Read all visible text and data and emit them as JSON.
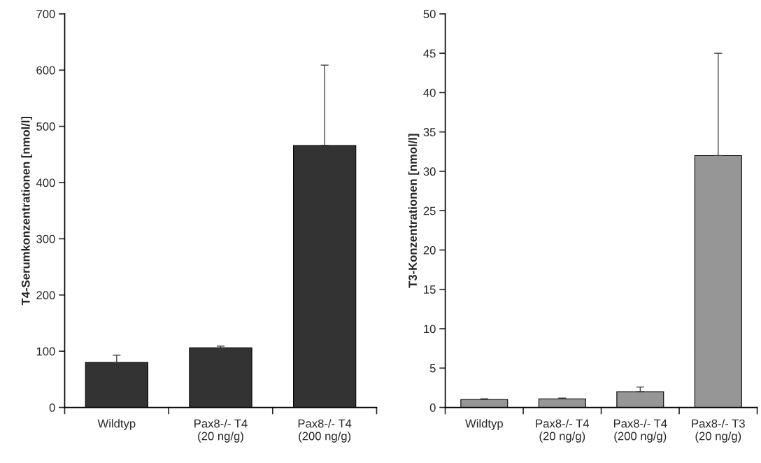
{
  "chart_data": [
    {
      "type": "bar",
      "ylabel": "T4-Serumkonzentrationen [nmol/l]",
      "categories": [
        "Wildtyp",
        "Pax8-/- T4\n(20 ng/g)",
        "Pax8-/- T4\n(200 ng/g)"
      ],
      "values": [
        80,
        106,
        466
      ],
      "errors": [
        [
          80,
          93
        ],
        [
          106,
          109
        ],
        [
          466,
          609
        ]
      ],
      "color": "#333333",
      "ylim": [
        0,
        700
      ],
      "yticks": [
        0,
        100,
        200,
        300,
        400,
        500,
        600,
        700
      ],
      "grid": false,
      "legend": false
    },
    {
      "type": "bar",
      "ylabel": "T3-Konzentrationen [nmol/l]",
      "categories": [
        "Wildtyp",
        "Pax8-/- T4\n(20 ng/g)",
        "Pax8-/- T4\n(200 ng/g)",
        "Pax8-/- T3\n(20 ng/g)"
      ],
      "values": [
        1.0,
        1.1,
        2.0,
        32
      ],
      "errors": [
        [
          1.0,
          1.1
        ],
        [
          1.1,
          1.2
        ],
        [
          2.0,
          2.6
        ],
        [
          32,
          45
        ]
      ],
      "color": "#969696",
      "ylim": [
        0,
        50
      ],
      "yticks": [
        0,
        5,
        10,
        15,
        20,
        25,
        30,
        35,
        40,
        45,
        50
      ],
      "grid": false,
      "legend": false
    }
  ]
}
